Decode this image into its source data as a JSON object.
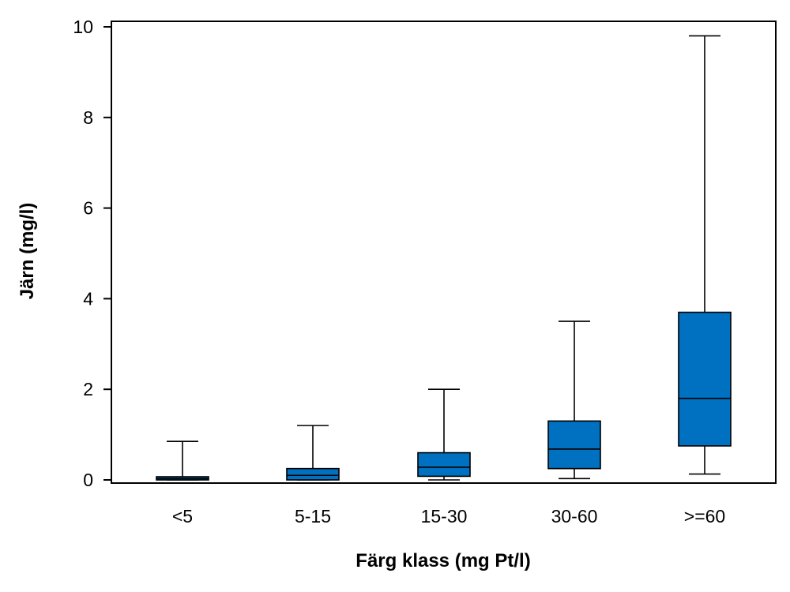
{
  "chart_data": {
    "type": "boxplot",
    "title": "",
    "xlabel": "Färg klass (mg Pt/l)",
    "ylabel": "Järn (mg/l)",
    "ylim": [
      0,
      10
    ],
    "yticks": [
      0,
      2,
      4,
      6,
      8,
      10
    ],
    "yticklabels": [
      "0",
      "2",
      "4",
      "6",
      "8",
      "10"
    ],
    "categories": [
      "<5",
      "5-15",
      "15-30",
      "30-60",
      ">=60"
    ],
    "boxes": [
      {
        "category": "<5",
        "min": 0.0,
        "q1": 0.0,
        "median": 0.03,
        "q3": 0.07,
        "max": 0.85
      },
      {
        "category": "5-15",
        "min": 0.0,
        "q1": 0.0,
        "median": 0.1,
        "q3": 0.25,
        "max": 1.2
      },
      {
        "category": "15-30",
        "min": 0.0,
        "q1": 0.08,
        "median": 0.28,
        "q3": 0.6,
        "max": 2.0
      },
      {
        "category": "30-60",
        "min": 0.03,
        "q1": 0.25,
        "median": 0.68,
        "q3": 1.3,
        "max": 3.5
      },
      {
        "category": ">=60",
        "min": 0.13,
        "q1": 0.75,
        "median": 1.8,
        "q3": 3.7,
        "max": 9.8
      }
    ],
    "box_color": "#0070C0",
    "grid": false,
    "legend": "none"
  }
}
